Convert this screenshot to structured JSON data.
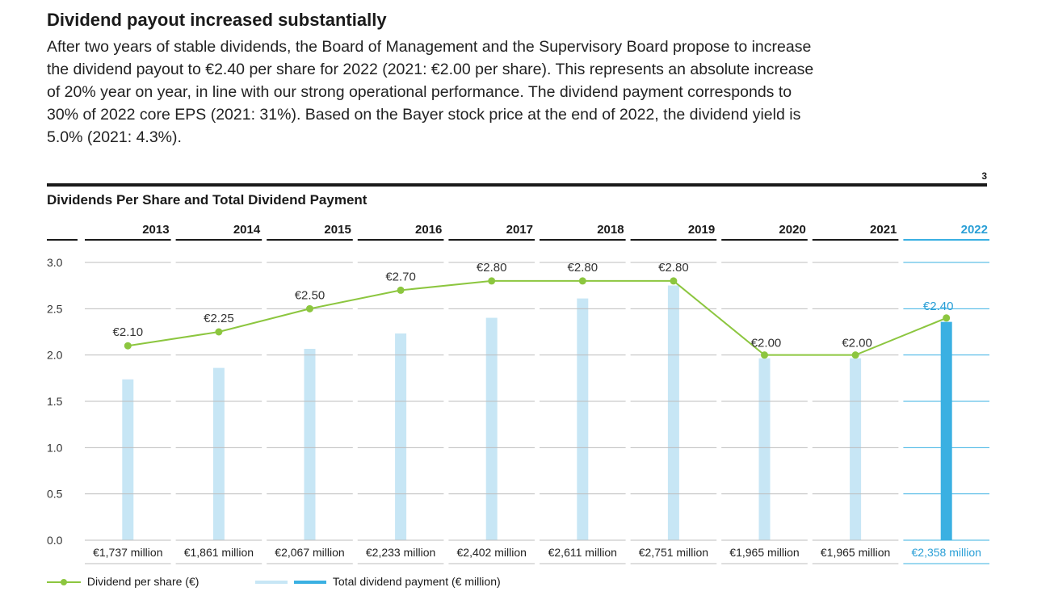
{
  "heading": "Dividend payout increased substantially",
  "intro": "After two years of stable dividends, the Board of Management and the Supervisory Board propose to increase the dividend payout to €2.40 per share for 2022 (2021: €2.00 per share). This represents an absolute increase of 20% year on year, in line with our strong operational performance. The dividend payment corresponds to 30% of 2022 core EPS (2021: 31%). Based on the Bayer stock price at the end of 2022, the dividend yield is 5.0% (2021: 4.3%).",
  "page_number": "3",
  "colors": {
    "line": "#8cc63f",
    "bar_light": "#c7e6f5",
    "bar_highlight": "#3ab0e2",
    "highlight_text": "#2a9fd6",
    "rule_dark": "#1a1a1a",
    "grid": "#bdbdbd"
  },
  "chart_data": {
    "type": "bar",
    "title": "Dividends Per Share and Total Dividend Payment",
    "categories": [
      "2013",
      "2014",
      "2015",
      "2016",
      "2017",
      "2018",
      "2019",
      "2020",
      "2021",
      "2022"
    ],
    "highlight_category": "2022",
    "ylim": [
      0,
      3.0
    ],
    "yticks": [
      "0.0",
      "0.5",
      "1.0",
      "1.5",
      "2.0",
      "2.5",
      "3.0"
    ],
    "grid": true,
    "series": [
      {
        "name": "Dividend per share (€)",
        "type": "line",
        "values": [
          2.1,
          2.25,
          2.5,
          2.7,
          2.8,
          2.8,
          2.8,
          2.0,
          2.0,
          2.4
        ],
        "labels": [
          "€2.10",
          "€2.25",
          "€2.50",
          "€2.70",
          "€2.80",
          "€2.80",
          "€2.80",
          "€2.00",
          "€2.00",
          "€2.40"
        ]
      },
      {
        "name": "Total dividend payment (€ million)",
        "type": "bar",
        "values": [
          1737,
          1861,
          2067,
          2233,
          2402,
          2611,
          2751,
          1965,
          1965,
          2358
        ],
        "labels": [
          "€1,737 million",
          "€1,861 million",
          "€2,067 million",
          "€2,233 million",
          "€2,402 million",
          "€2,611 million",
          "€2,751 million",
          "€1,965 million",
          "€1,965 million",
          "€2,358 million"
        ]
      }
    ],
    "legend_position": "bottom-left"
  }
}
